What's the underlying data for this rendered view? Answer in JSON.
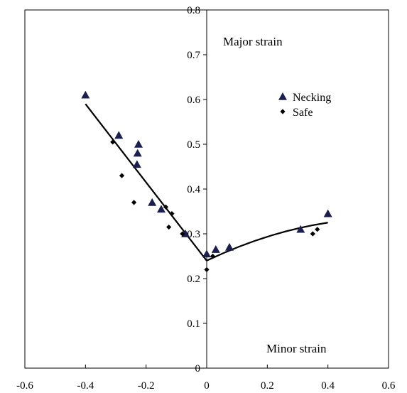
{
  "chart_data": {
    "type": "scatter",
    "xlim": [
      -0.6,
      0.6
    ],
    "ylim": [
      0,
      0.8
    ],
    "x_ticks": [
      "-0.6",
      "-0.4",
      "-0.2",
      "0",
      "0.2",
      "0.4",
      "0.6"
    ],
    "y_ticks": [
      "0",
      "0.1",
      "0.2",
      "0.3",
      "0.4",
      "0.5",
      "0.6",
      "0.7",
      "0.8"
    ],
    "grid": false,
    "legend_position": "top-right",
    "annotations": {
      "y_axis_label": "Major strain",
      "x_axis_label": "Minor strain"
    },
    "series": [
      {
        "name": "Necking",
        "marker": "triangle",
        "color": "#1a1f4d",
        "points": [
          [
            -0.4,
            0.61
          ],
          [
            -0.29,
            0.52
          ],
          [
            -0.225,
            0.5
          ],
          [
            -0.228,
            0.48
          ],
          [
            -0.23,
            0.455
          ],
          [
            -0.18,
            0.37
          ],
          [
            -0.15,
            0.355
          ],
          [
            -0.07,
            0.3
          ],
          [
            0.0,
            0.255
          ],
          [
            0.03,
            0.265
          ],
          [
            0.075,
            0.27
          ],
          [
            0.31,
            0.31
          ],
          [
            0.4,
            0.345
          ]
        ]
      },
      {
        "name": "Safe",
        "marker": "diamond",
        "color": "#000000",
        "points": [
          [
            -0.31,
            0.505
          ],
          [
            -0.28,
            0.43
          ],
          [
            -0.24,
            0.37
          ],
          [
            -0.135,
            0.36
          ],
          [
            -0.125,
            0.315
          ],
          [
            -0.115,
            0.345
          ],
          [
            -0.08,
            0.3
          ],
          [
            0.0,
            0.22
          ],
          [
            0.02,
            0.25
          ],
          [
            0.35,
            0.3
          ],
          [
            0.365,
            0.31
          ]
        ]
      }
    ],
    "fit_lines": [
      {
        "from": [
          -0.4,
          0.59
        ],
        "to": [
          0.0,
          0.24
        ],
        "curve": false
      },
      {
        "from": [
          0.0,
          0.24
        ],
        "mid": [
          0.2,
          0.295
        ],
        "to": [
          0.4,
          0.325
        ],
        "curve": true
      }
    ],
    "line_color": "#000000"
  }
}
